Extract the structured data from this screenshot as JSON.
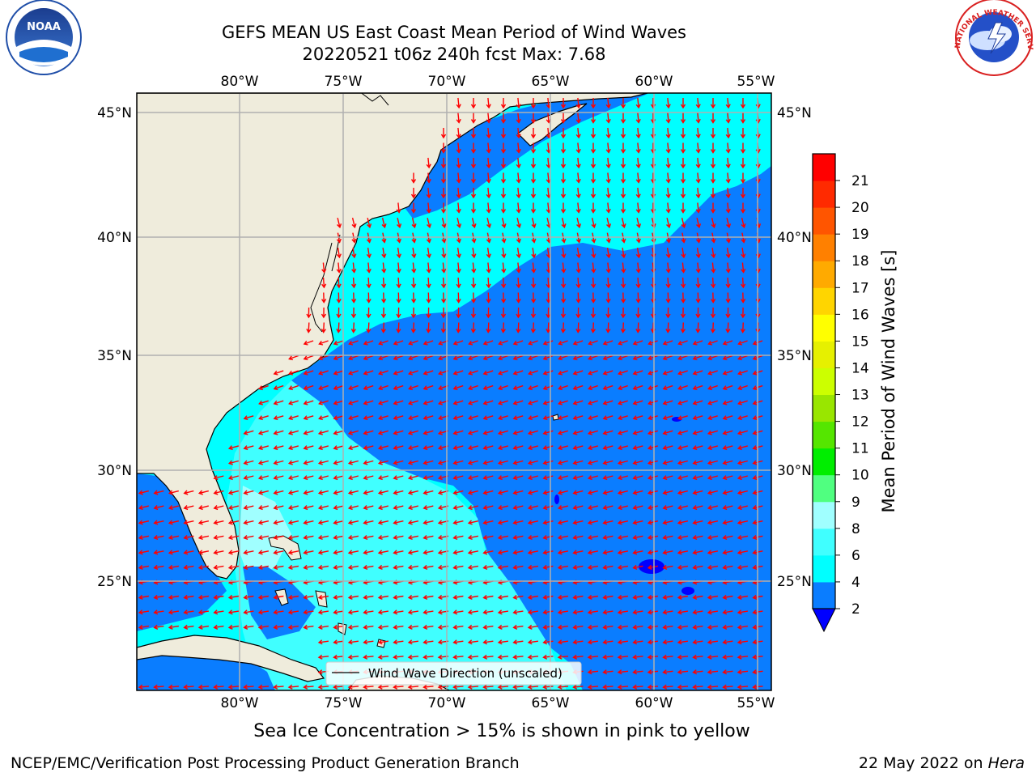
{
  "title": {
    "line1": "GEFS MEAN US East Coast Mean Period of Wind Waves",
    "line2": "20220521 t06z 240h fcst   Max: 7.68"
  },
  "map": {
    "lon_ticks": [
      "80°W",
      "75°W",
      "70°W",
      "65°W",
      "60°W",
      "55°W"
    ],
    "lat_ticks": [
      "45°N",
      "40°N",
      "35°N",
      "30°N",
      "25°N"
    ],
    "legend_label": "Wind Wave Direction (unscaled)",
    "land_color": "#efecdc",
    "arrow_color": "#ff0000"
  },
  "colorbar": {
    "label": "Mean Period of Wind Waves [s]",
    "ticks": [
      "2",
      "4",
      "6",
      "8",
      "9",
      "10",
      "11",
      "12",
      "13",
      "14",
      "15",
      "16",
      "17",
      "18",
      "19",
      "20",
      "21"
    ],
    "colors": [
      "#0a7dff",
      "#00ffff",
      "#40ffff",
      "#a0ffff",
      "#50ff80",
      "#00ee00",
      "#55e600",
      "#99e600",
      "#ccff00",
      "#e6f000",
      "#ffff00",
      "#ffd500",
      "#ffaa00",
      "#ff8000",
      "#ff5500",
      "#ff2a00",
      "#ff0000"
    ],
    "under_color": "#0000ff"
  },
  "ice_note": "Sea Ice Concentration > 15% is shown in pink to yellow",
  "footer": {
    "left": "NCEP/EMC/Verification Post Processing Product Generation Branch",
    "right_prefix": "22 May 2022 on ",
    "right_machine": "Hera"
  },
  "logos": {
    "noaa_text": "NOAA",
    "nws_text": "NATIONAL WEATHER SERVICE"
  }
}
